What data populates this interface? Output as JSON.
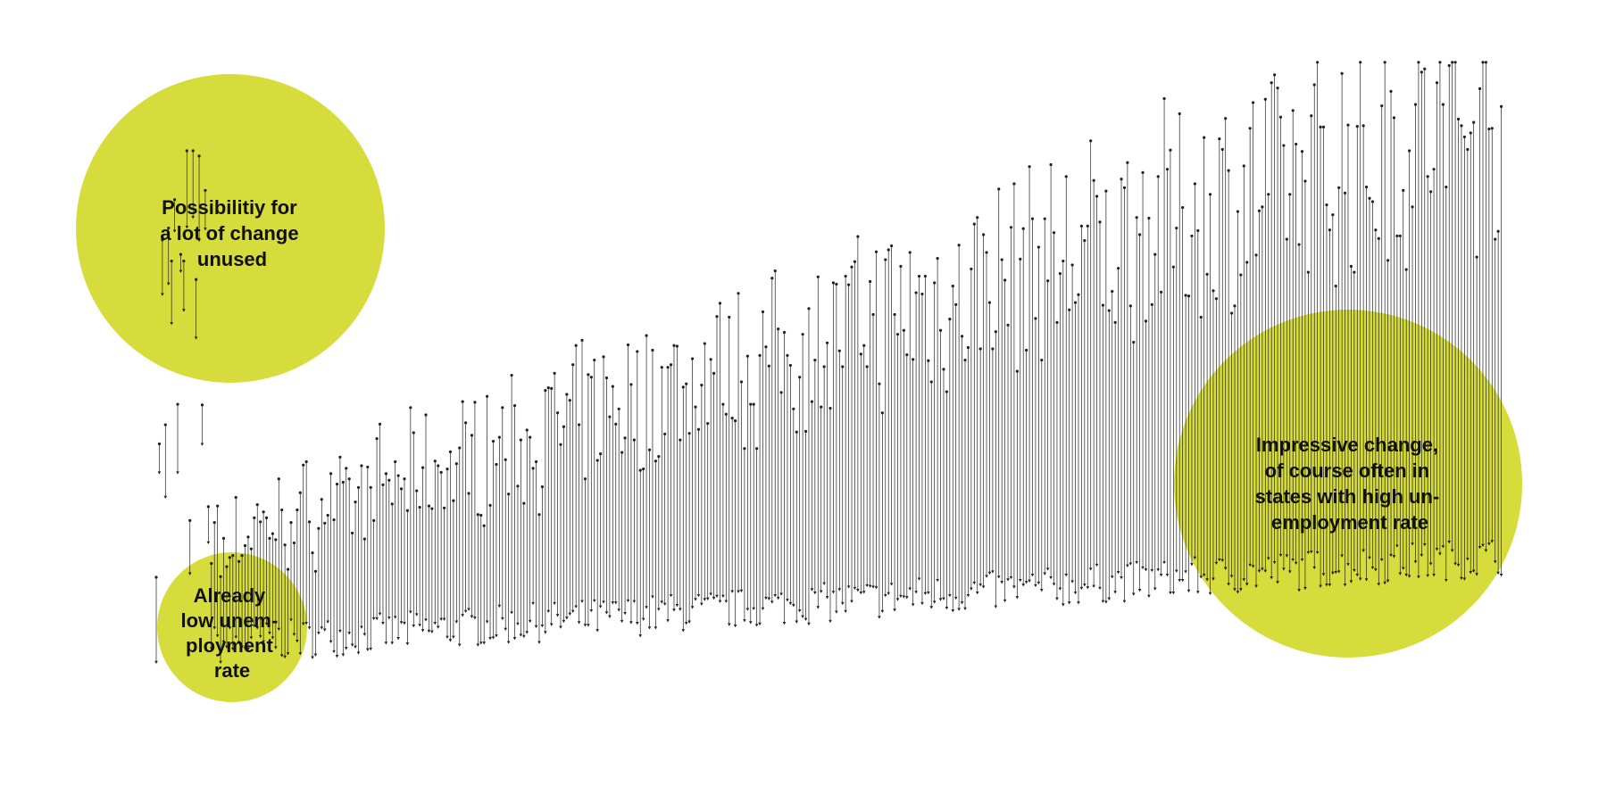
{
  "colors": {
    "bubble": "#d6dc3b",
    "mark": "#222222",
    "background": "#ffffff"
  },
  "annotations": [
    {
      "id": "bubble-unused-change",
      "lines": [
        "Possibilitiy for",
        "a lot of change",
        "unused"
      ]
    },
    {
      "id": "bubble-low-rate",
      "lines": [
        "Already",
        "low unem-",
        "ployment",
        "rate"
      ]
    },
    {
      "id": "bubble-impressive-change",
      "lines": [
        "Impressive change,",
        "of course often in",
        "states with high un-",
        "employment rate"
      ]
    }
  ],
  "chart_data": {
    "type": "dumbbell",
    "title": "",
    "xlabel": "",
    "ylabel": "",
    "grid": false,
    "legend": "none",
    "x_range": [
      0,
      440
    ],
    "y_range": [
      0,
      100
    ],
    "series": [
      {
        "name": "",
        "description_note": "",
        "points": []
      }
    ]
  }
}
